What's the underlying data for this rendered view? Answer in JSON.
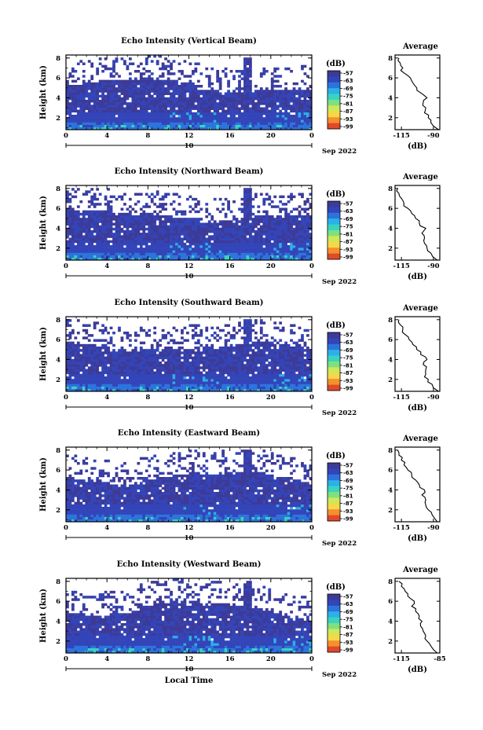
{
  "colorbar": {
    "unit": "(dB)",
    "ticks": [
      "-57",
      "-63",
      "-69",
      "-75",
      "-81",
      "-87",
      "-93",
      "-99"
    ],
    "colors": [
      "#e04a2a",
      "#f5902c",
      "#f5d84a",
      "#cfe85a",
      "#7fe080",
      "#39d3c0",
      "#2cb0e8",
      "#2c74dc",
      "#3345b8",
      "#3d3a98"
    ]
  },
  "x_ticks": [
    "0",
    "4",
    "8",
    "12",
    "16",
    "20",
    "0"
  ],
  "day_tick": "10",
  "date_label": "Sep 2022",
  "xlabel": "Local Time",
  "ylabel": "Height (km)",
  "y_ticks": [
    "2",
    "4",
    "6",
    "8"
  ],
  "avg_title": "Average",
  "avg_xlabel": "(dB)",
  "chart_data": [
    {
      "type": "heatmap",
      "title": "Echo Intensity (Vertical Beam)",
      "ylabel": "Height (km)",
      "ylim": [
        0.8,
        8.3
      ],
      "xlim": [
        0,
        24
      ],
      "xlabel": "",
      "colorbar_unit": "(dB)",
      "colorbar_range": [
        -99,
        -57
      ],
      "average_profile": {
        "title": "Average",
        "xlabel": "(dB)",
        "x_ticks": [
          "-115",
          "-90"
        ],
        "xlim": [
          -120,
          -85
        ],
        "heights": [
          0.8,
          1.5,
          2.0,
          2.5,
          3.0,
          3.5,
          4.0,
          4.5,
          5.0,
          5.5,
          6.0,
          6.5,
          7.0,
          7.5,
          8.0
        ],
        "values": [
          -86,
          -92,
          -94,
          -97,
          -96,
          -98,
          -95,
          -100,
          -103,
          -106,
          -108,
          -113,
          -114,
          -116,
          -117
        ]
      }
    },
    {
      "type": "heatmap",
      "title": "Echo Intensity (Northward Beam)",
      "ylabel": "Height (km)",
      "ylim": [
        0.8,
        8.3
      ],
      "xlim": [
        0,
        24
      ],
      "xlabel": "",
      "colorbar_unit": "(dB)",
      "colorbar_range": [
        -99,
        -57
      ],
      "average_profile": {
        "title": "Average",
        "xlabel": "(dB)",
        "x_ticks": [
          "-115",
          "-90"
        ],
        "xlim": [
          -120,
          -85
        ],
        "heights": [
          0.8,
          1.5,
          2.0,
          2.5,
          3.0,
          3.5,
          4.0,
          4.5,
          5.0,
          5.5,
          6.0,
          6.5,
          7.0,
          7.5,
          8.0
        ],
        "values": [
          -87,
          -92,
          -95,
          -97,
          -97,
          -99,
          -96,
          -101,
          -104,
          -107,
          -110,
          -113,
          -115,
          -117,
          -118
        ]
      }
    },
    {
      "type": "heatmap",
      "title": "Echo Intensity (Southward Beam)",
      "ylabel": "Height (km)",
      "ylim": [
        0.8,
        8.3
      ],
      "xlim": [
        0,
        24
      ],
      "xlabel": "",
      "colorbar_unit": "(dB)",
      "colorbar_range": [
        -99,
        -57
      ],
      "average_profile": {
        "title": "Average",
        "xlabel": "(dB)",
        "x_ticks": [
          "-115",
          "-90"
        ],
        "xlim": [
          -120,
          -85
        ],
        "heights": [
          0.8,
          1.5,
          2.0,
          2.5,
          3.0,
          3.5,
          4.0,
          4.5,
          5.0,
          5.5,
          6.0,
          6.5,
          7.0,
          7.5,
          8.0
        ],
        "values": [
          -86,
          -91,
          -94,
          -96,
          -96,
          -98,
          -95,
          -100,
          -103,
          -106,
          -109,
          -112,
          -114,
          -116,
          -117
        ]
      }
    },
    {
      "type": "heatmap",
      "title": "Echo Intensity (Eastward Beam)",
      "ylabel": "Height (km)",
      "ylim": [
        0.8,
        8.3
      ],
      "xlim": [
        0,
        24
      ],
      "xlabel": "",
      "colorbar_unit": "(dB)",
      "colorbar_range": [
        -99,
        -57
      ],
      "average_profile": {
        "title": "Average",
        "xlabel": "(dB)",
        "x_ticks": [
          "-115",
          "-90"
        ],
        "xlim": [
          -120,
          -85
        ],
        "heights": [
          0.8,
          1.5,
          2.0,
          2.5,
          3.0,
          3.5,
          4.0,
          4.5,
          5.0,
          5.5,
          6.0,
          6.5,
          7.0,
          7.5,
          8.0
        ],
        "values": [
          -87,
          -91,
          -94,
          -96,
          -96,
          -99,
          -97,
          -101,
          -104,
          -107,
          -110,
          -113,
          -115,
          -117,
          -118
        ]
      }
    },
    {
      "type": "heatmap",
      "title": "Echo Intensity (Westward Beam)",
      "ylabel": "Height (km)",
      "ylim": [
        0.8,
        8.3
      ],
      "xlim": [
        0,
        24
      ],
      "xlabel": "Local Time",
      "colorbar_unit": "(dB)",
      "colorbar_range": [
        -99,
        -57
      ],
      "average_profile": {
        "title": "Average",
        "xlabel": "(dB)",
        "x_ticks": [
          "-115",
          "-85"
        ],
        "xlim": [
          -120,
          -85
        ],
        "heights": [
          0.8,
          1.5,
          2.0,
          2.5,
          3.0,
          3.5,
          4.0,
          4.5,
          5.0,
          5.5,
          6.0,
          6.5,
          7.0,
          7.5,
          8.0
        ],
        "values": [
          -87,
          -92,
          -95,
          -96,
          -98,
          -100,
          -99,
          -101,
          -104,
          -107,
          -105,
          -110,
          -112,
          -115,
          -117
        ]
      }
    }
  ]
}
